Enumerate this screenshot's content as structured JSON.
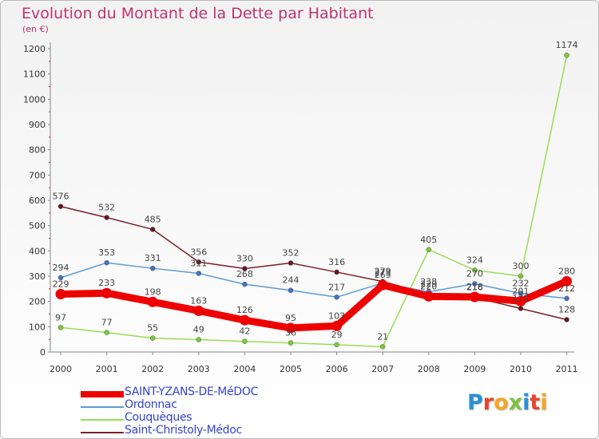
{
  "title": "Evolution du Montant de la Dette par Habitant",
  "subtitle": "(en €)",
  "logo": {
    "text": "Proxiti",
    "letters": [
      {
        "ch": "P",
        "color": "#2a8fd6"
      },
      {
        "ch": "r",
        "color": "#e8452c"
      },
      {
        "ch": "o",
        "color": "#f5a623"
      },
      {
        "ch": "x",
        "color": "#7cc242"
      },
      {
        "ch": "i",
        "color": "#2a8fd6"
      },
      {
        "ch": "t",
        "color": "#e8452c"
      },
      {
        "ch": "i",
        "color": "#f5a623"
      }
    ]
  },
  "legend": {
    "items": [
      {
        "label": "SAINT-YZANS-DE-MéDOC",
        "color": "#ee0000",
        "thick": true
      },
      {
        "label": "Ordonnac",
        "color": "#5b9bd5",
        "thick": false
      },
      {
        "label": "Couquèques",
        "color": "#99dd55",
        "thick": false
      },
      {
        "label": "Saint-Christoly-Médoc",
        "color": "#7b1f2a",
        "thick": false
      }
    ]
  },
  "chart_data": {
    "type": "line",
    "title": "Evolution du Montant de la Dette par Habitant",
    "subtitle": "(en €)",
    "xlabel": "",
    "ylabel": "",
    "x": [
      "2000",
      "2001",
      "2002",
      "2003",
      "2004",
      "2005",
      "2006",
      "2007",
      "2008",
      "2009",
      "2010",
      "2011"
    ],
    "ylim": [
      0,
      1200
    ],
    "yticks": [
      0,
      100,
      200,
      300,
      400,
      500,
      600,
      700,
      800,
      900,
      1000,
      1100,
      1200
    ],
    "grid": false,
    "legend_position": "bottom-left",
    "series": [
      {
        "name": "SAINT-YZANS-DE-MéDOC",
        "color": "#ee0000",
        "dot": "#ee0000",
        "values": [
          229,
          233,
          198,
          163,
          126,
          95,
          103,
          265,
          220,
          218,
          201,
          280
        ],
        "labels": [
          "229",
          "233",
          "198",
          "163",
          "126",
          "95",
          "103",
          "265",
          "220",
          "218",
          "201",
          "280"
        ]
      },
      {
        "name": "Ordonnac",
        "color": "#5b9bd5",
        "dot": "#4472c4",
        "values": [
          294,
          353,
          331,
          311,
          268,
          244,
          217,
          273,
          238,
          270,
          232,
          212
        ],
        "labels": [
          "294",
          "353",
          "331",
          "311",
          "268",
          "244",
          "217",
          "273",
          "238",
          "270",
          "232",
          "212"
        ]
      },
      {
        "name": "Couquèques",
        "color": "#99dd55",
        "dot": "#77cc33",
        "values": [
          97,
          77,
          55,
          49,
          42,
          36,
          29,
          21,
          405,
          324,
          300,
          1174
        ],
        "labels": [
          "97",
          "77",
          "55",
          "49",
          "42",
          "36",
          "29",
          "21",
          "405",
          "324",
          "300",
          "1174"
        ]
      },
      {
        "name": "Saint-Christoly-Médoc",
        "color": "#7b1f2a",
        "dot": "#6b1520",
        "values": [
          576,
          532,
          485,
          356,
          330,
          352,
          316,
          279,
          229,
          216,
          172,
          128
        ],
        "labels": [
          "576",
          "532",
          "485",
          "356",
          "330",
          "352",
          "316",
          "279",
          "229",
          "216",
          "172",
          "128"
        ]
      }
    ]
  }
}
